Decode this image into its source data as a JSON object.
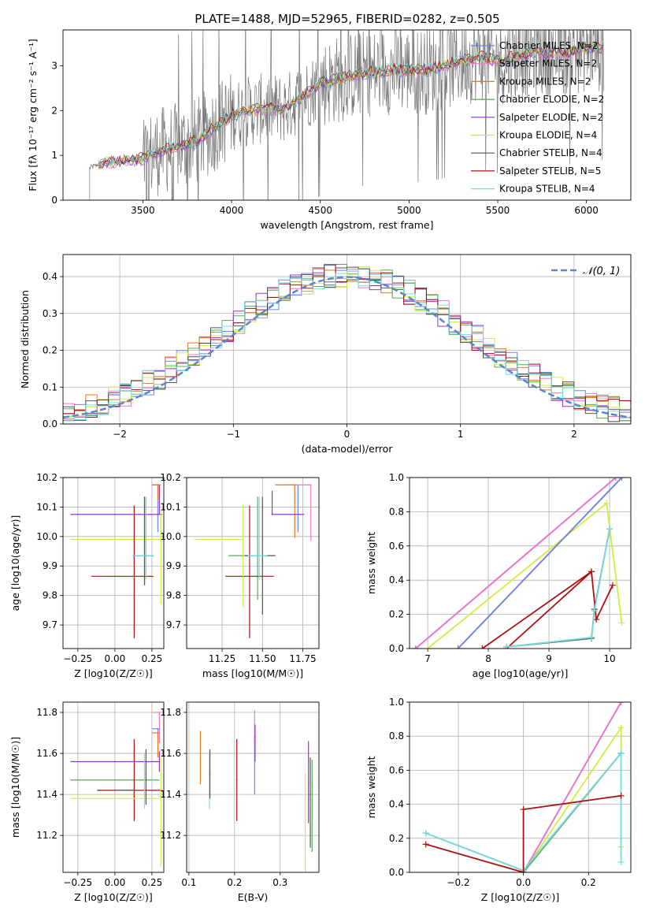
{
  "title": "PLATE=1488, MJD=52965, FIBERID=0282, z=0.505",
  "colors": {
    "chabrier_miles": "#6688ee",
    "salpeter_miles": "#ee77cc",
    "kroupa_miles": "#ee7722",
    "chabrier_elodie": "#55aa55",
    "salpeter_elodie": "#9933cc",
    "kroupa_elodie": "#ccee44",
    "chabrier_stelib": "#555555",
    "salpeter_stelib": "#aa1111",
    "kroupa_stelib": "#77dddd",
    "data": "#777777",
    "normal": "#5588cc"
  },
  "chart_data": [
    {
      "id": "spectrum",
      "type": "line",
      "title": "PLATE=1488, MJD=52965, FIBERID=0282, z=0.505",
      "xlabel": "wavelength [Angstrom, rest frame]",
      "ylabel": "Flux [fλ 10⁻¹⁷ erg cm⁻² s⁻¹ A⁻¹]",
      "xlim": [
        3050,
        6250
      ],
      "ylim": [
        0,
        3.8
      ],
      "xticks": [
        3500,
        4000,
        4500,
        5000,
        5500,
        6000
      ],
      "yticks": [
        0,
        1,
        2,
        3
      ],
      "grid": false,
      "legend_position": "top-right",
      "continuum": [
        [
          3200,
          0.72
        ],
        [
          3250,
          0.8
        ],
        [
          3300,
          0.85
        ],
        [
          3400,
          0.88
        ],
        [
          3500,
          0.92
        ],
        [
          3600,
          1.1
        ],
        [
          3700,
          1.2
        ],
        [
          3800,
          1.3
        ],
        [
          3900,
          1.6
        ],
        [
          4000,
          1.9
        ],
        [
          4100,
          2.0
        ],
        [
          4200,
          2.05
        ],
        [
          4300,
          2.05
        ],
        [
          4400,
          2.3
        ],
        [
          4500,
          2.6
        ],
        [
          4600,
          2.7
        ],
        [
          4700,
          2.8
        ],
        [
          4800,
          2.85
        ],
        [
          4900,
          2.9
        ],
        [
          5000,
          2.9
        ],
        [
          5100,
          2.9
        ],
        [
          5200,
          3.0
        ],
        [
          5300,
          3.1
        ],
        [
          5400,
          3.2
        ],
        [
          5500,
          3.1
        ],
        [
          5600,
          3.2
        ],
        [
          5700,
          3.3
        ],
        [
          5800,
          3.3
        ],
        [
          5900,
          3.3
        ],
        [
          6000,
          3.4
        ],
        [
          6100,
          3.4
        ]
      ],
      "legend": [
        "Chabrier MILES, N_SSP=2",
        "Salpeter MILES, N_SSP=2",
        "Kroupa MILES, N_SSP=2",
        "Chabrier ELODIE, N_SSP=2",
        "Salpeter ELODIE, N_SSP=2",
        "Kroupa ELODIE, N_SSP=4",
        "Chabrier STELIB, N_SSP=4",
        "Salpeter STELIB, N_SSP=5",
        "Kroupa STELIB, N_SSP=4"
      ]
    },
    {
      "id": "residuals",
      "type": "histogram",
      "xlabel": "(data-model)/error",
      "ylabel": "Normed distribution",
      "xlim": [
        -2.5,
        2.5
      ],
      "ylim": [
        0,
        0.46
      ],
      "xticks": [
        -2,
        -1,
        0,
        1,
        2
      ],
      "yticks": [
        0.0,
        0.1,
        0.2,
        0.3,
        0.4
      ],
      "grid": true,
      "legend_position": "top-right",
      "legend": "𝒩(0, 1)",
      "bin_width": 0.1
    },
    {
      "id": "age-vs-Z",
      "type": "errorbar",
      "xlabel": "Z [log10(Z/Z☉)]",
      "ylabel": "age  [log10(age/yr)]",
      "xlim": [
        -0.35,
        0.33
      ],
      "ylim": [
        9.62,
        10.2
      ],
      "xticks": [
        -0.25,
        0.0,
        0.25
      ],
      "yticks": [
        9.7,
        9.8,
        9.9,
        10.0,
        10.1,
        10.2
      ],
      "points": [
        {
          "s": "chabrier_miles",
          "x": 0.29,
          "xerr": [
            0.04,
            0.01
          ],
          "y": 10.175,
          "yerr": [
            0.16,
            0.0
          ]
        },
        {
          "s": "salpeter_miles",
          "x": 0.3,
          "xerr": [
            0.05,
            0.01
          ],
          "y": 10.175,
          "yerr": [
            0.06,
            0.0
          ]
        },
        {
          "s": "kroupa_miles",
          "x": 0.29,
          "xerr": [
            0.04,
            0.01
          ],
          "y": 10.175,
          "yerr": [
            0.05,
            0.0
          ]
        },
        {
          "s": "chabrier_elodie",
          "x": 0.2,
          "xerr": [
            0.08,
            0.06
          ],
          "y": 9.935,
          "yerr": [
            0.1,
            0.2
          ]
        },
        {
          "s": "salpeter_elodie",
          "x": 0.0,
          "xerr": [
            0.3,
            0.32
          ],
          "y": 10.075,
          "yerr": [
            0.0,
            0.0
          ]
        },
        {
          "s": "kroupa_elodie",
          "x": 0.0,
          "xerr": [
            0.3,
            0.32
          ],
          "y": 9.99,
          "yerr": [
            0.0,
            0.0
          ]
        },
        {
          "s": "chabrier_stelib",
          "x": 0.2,
          "xerr": [
            0.08,
            0.06
          ],
          "y": 9.935,
          "yerr": [
            0.1,
            0.2
          ]
        },
        {
          "s": "salpeter_stelib",
          "x": 0.13,
          "xerr": [
            0.29,
            0.13
          ],
          "y": 9.865,
          "yerr": [
            0.21,
            0.24
          ]
        },
        {
          "s": "kroupa_stelib",
          "x": 0.21,
          "xerr": [
            0.09,
            0.05
          ],
          "y": 9.935,
          "yerr": [
            0.08,
            0.2
          ]
        },
        {
          "s": "kroupa_elodie",
          "x": 0.31,
          "xerr": [
            0.0,
            0.0
          ],
          "y": 9.99,
          "yerr": [
            0.22,
            0.1
          ]
        },
        {
          "s": "salpeter_elodie",
          "x": 0.3,
          "xerr": [
            0.0,
            0.0
          ],
          "y": 10.075,
          "yerr": [
            0.0,
            0.1
          ]
        }
      ]
    },
    {
      "id": "age-vs-mass",
      "type": "errorbar",
      "xlabel": "mass [log10(M/M☉)]",
      "ylabel": "",
      "xlim": [
        11.03,
        11.85
      ],
      "ylim": [
        9.62,
        10.2
      ],
      "xticks": [
        11.25,
        11.5,
        11.75
      ],
      "yticks": [
        9.7,
        9.8,
        9.9,
        10.0,
        10.1,
        10.2
      ],
      "points": [
        {
          "s": "chabrier_miles",
          "x": 11.72,
          "xerr": [
            0.05,
            0.0
          ],
          "y": 10.175,
          "yerr": [
            0.16,
            0.0
          ]
        },
        {
          "s": "salpeter_miles",
          "x": 11.8,
          "xerr": [
            0.15,
            0.0
          ],
          "y": 10.175,
          "yerr": [
            0.19,
            0.0
          ]
        },
        {
          "s": "kroupa_miles",
          "x": 11.7,
          "xerr": [
            0.12,
            0.0
          ],
          "y": 10.175,
          "yerr": [
            0.18,
            0.0
          ]
        },
        {
          "s": "chabrier_elodie",
          "x": 11.47,
          "xerr": [
            0.18,
            0.0
          ],
          "y": 9.935,
          "yerr": [
            0.15,
            0.2
          ]
        },
        {
          "s": "salpeter_elodie",
          "x": 11.56,
          "xerr": [
            0.0,
            0.2
          ],
          "y": 10.075,
          "yerr": [
            0.0,
            0.0
          ]
        },
        {
          "s": "kroupa_elodie",
          "x": 11.38,
          "xerr": [
            0.3,
            0.0
          ],
          "y": 9.99,
          "yerr": [
            0.0,
            0.0
          ]
        },
        {
          "s": "chabrier_stelib",
          "x": 11.5,
          "xerr": [
            0.11,
            0.08
          ],
          "y": 9.935,
          "yerr": [
            0.2,
            0.2
          ]
        },
        {
          "s": "salpeter_stelib",
          "x": 11.42,
          "xerr": [
            0.15,
            0.15
          ],
          "y": 9.865,
          "yerr": [
            0.21,
            0.24
          ]
        },
        {
          "s": "kroupa_stelib",
          "x": 11.48,
          "xerr": [
            0.07,
            0.05
          ],
          "y": 9.935,
          "yerr": [
            0.08,
            0.2
          ]
        },
        {
          "s": "kroupa_elodie",
          "x": 11.38,
          "xerr": [
            0.0,
            0.0
          ],
          "y": 9.99,
          "yerr": [
            0.23,
            0.12
          ]
        },
        {
          "s": "salpeter_elodie",
          "x": 11.56,
          "xerr": [
            0.0,
            0.0
          ],
          "y": 10.075,
          "yerr": [
            0.0,
            0.08
          ]
        }
      ]
    },
    {
      "id": "weight-vs-age",
      "type": "line",
      "xlabel": "age  [log10(age/yr)]",
      "ylabel": "mass weight",
      "xlim": [
        6.7,
        10.35
      ],
      "ylim": [
        0,
        1.0
      ],
      "xticks": [
        7,
        8,
        9,
        10
      ],
      "yticks": [
        0.0,
        0.2,
        0.4,
        0.6,
        0.8,
        1.0
      ],
      "series": [
        {
          "s": "salpeter_elodie",
          "x": [
            6.8,
            10.1
          ],
          "y": [
            0.0,
            1.0
          ]
        },
        {
          "s": "salpeter_miles",
          "x": [
            6.8,
            10.1
          ],
          "y": [
            0.0,
            1.0
          ]
        },
        {
          "s": "kroupa_elodie",
          "x": [
            7.0,
            9.95,
            10.2
          ],
          "y": [
            0.0,
            0.85,
            0.15
          ]
        },
        {
          "s": "kroupa_miles",
          "x": [
            7.5,
            10.2
          ],
          "y": [
            0.0,
            1.0
          ]
        },
        {
          "s": "chabrier_miles",
          "x": [
            7.5,
            10.2
          ],
          "y": [
            0.0,
            1.0
          ]
        },
        {
          "s": "salpeter_stelib",
          "x": [
            7.9,
            9.7,
            9.78,
            10.05
          ],
          "y": [
            0.0,
            0.45,
            0.17,
            0.37
          ]
        },
        {
          "s": "salpeter_stelib",
          "x": [
            8.3,
            9.7
          ],
          "y": [
            0.0,
            0.45
          ]
        },
        {
          "s": "chabrier_stelib",
          "x": [
            8.3,
            9.7,
            9.75,
            10.0
          ],
          "y": [
            0.01,
            0.06,
            0.23,
            0.7
          ]
        },
        {
          "s": "kroupa_stelib",
          "x": [
            8.3,
            9.7,
            9.75,
            10.0
          ],
          "y": [
            0.01,
            0.065,
            0.22,
            0.7
          ]
        }
      ]
    },
    {
      "id": "mass-vs-Z",
      "type": "errorbar",
      "xlabel": "Z [log10(Z/Z☉)]",
      "ylabel": "mass [log10(M/M☉)]",
      "xlim": [
        -0.35,
        0.33
      ],
      "ylim": [
        11.02,
        11.85
      ],
      "xticks": [
        -0.25,
        0.0,
        0.25
      ],
      "yticks": [
        11.2,
        11.4,
        11.6,
        11.8
      ],
      "points": [
        {
          "s": "salpeter_miles",
          "x": 0.3,
          "xerr": [
            0.05,
            0.01
          ],
          "y": 11.8,
          "yerr": [
            0.15,
            0.0
          ]
        },
        {
          "s": "chabrier_miles",
          "x": 0.29,
          "xerr": [
            0.04,
            0.01
          ],
          "y": 11.72,
          "yerr": [
            0.05,
            0.0
          ]
        },
        {
          "s": "kroupa_miles",
          "x": 0.29,
          "xerr": [
            0.04,
            0.01
          ],
          "y": 11.7,
          "yerr": [
            0.12,
            0.0
          ]
        },
        {
          "s": "salpeter_elodie",
          "x": 0.0,
          "xerr": [
            0.3,
            0.3
          ],
          "y": 11.56,
          "yerr": [
            0.0,
            0.0
          ]
        },
        {
          "s": "chabrier_elodie",
          "x": 0.0,
          "xerr": [
            0.3,
            0.3
          ],
          "y": 11.47,
          "yerr": [
            0.0,
            0.0
          ]
        },
        {
          "s": "salpeter_stelib",
          "x": 0.13,
          "xerr": [
            0.25,
            0.19
          ],
          "y": 11.42,
          "yerr": [
            0.15,
            0.25
          ]
        },
        {
          "s": "chabrier_stelib",
          "x": 0.0,
          "xerr": [
            0.0,
            0.14
          ],
          "y": 11.42,
          "yerr": [
            0.0,
            0.0
          ]
        },
        {
          "s": "kroupa_elodie",
          "x": 0.0,
          "xerr": [
            0.3,
            0.3
          ],
          "y": 11.38,
          "yerr": [
            0.0,
            0.0
          ]
        },
        {
          "s": "chabrier_stelib",
          "x": 0.21,
          "xerr": [
            0.0,
            0.0
          ],
          "y": 11.5,
          "yerr": [
            0.15,
            0.12
          ]
        },
        {
          "s": "kroupa_stelib",
          "x": 0.2,
          "xerr": [
            0.0,
            0.0
          ],
          "y": 11.48,
          "yerr": [
            0.15,
            0.12
          ]
        },
        {
          "s": "kroupa_elodie",
          "x": 0.31,
          "xerr": [
            0.0,
            0.0
          ],
          "y": 11.38,
          "yerr": [
            0.33,
            0.2
          ]
        },
        {
          "s": "salpeter_elodie",
          "x": 0.3,
          "xerr": [
            0.0,
            0.0
          ],
          "y": 11.56,
          "yerr": [
            0.05,
            0.05
          ]
        }
      ]
    },
    {
      "id": "mass-vs-ebv",
      "type": "errorbar",
      "xlabel": "E(B-V)",
      "ylabel": "",
      "xlim": [
        0.095,
        0.385
      ],
      "ylim": [
        11.02,
        11.85
      ],
      "xticks": [
        0.1,
        0.2,
        0.3
      ],
      "yticks": [
        11.2,
        11.4,
        11.6,
        11.8
      ],
      "points": [
        {
          "s": "kroupa_miles",
          "x": 0.125,
          "y": 11.58,
          "yerr": [
            0.13,
            0.13
          ]
        },
        {
          "s": "kroupa_stelib",
          "x": 0.145,
          "y": 11.48,
          "yerr": [
            0.15,
            0.13
          ]
        },
        {
          "s": "chabrier_stelib",
          "x": 0.146,
          "y": 11.5,
          "yerr": [
            0.12,
            0.12
          ]
        },
        {
          "s": "salpeter_stelib",
          "x": 0.205,
          "y": 11.47,
          "yerr": [
            0.2,
            0.2
          ]
        },
        {
          "s": "chabrier_miles",
          "x": 0.244,
          "y": 11.68,
          "yerr": [
            0.28,
            0.0
          ]
        },
        {
          "s": "salpeter_miles",
          "x": 0.244,
          "y": 11.74,
          "yerr": [
            0.12,
            0.07
          ]
        },
        {
          "s": "salpeter_elodie",
          "x": 0.245,
          "y": 11.68,
          "yerr": [
            0.12,
            0.06
          ]
        },
        {
          "s": "kroupa_elodie",
          "x": 0.355,
          "y": 11.25,
          "yerr": [
            0.25,
            0.25
          ]
        },
        {
          "s": "salpeter_elodie",
          "x": 0.362,
          "y": 11.46,
          "yerr": [
            0.2,
            0.2
          ]
        },
        {
          "s": "chabrier_elodie",
          "x": 0.37,
          "y": 11.35,
          "yerr": [
            0.23,
            0.22
          ]
        },
        {
          "s": "chabrier_stelib",
          "x": 0.366,
          "y": 11.4,
          "yerr": [
            0.26,
            0.18
          ]
        }
      ]
    },
    {
      "id": "weight-vs-Z",
      "type": "line",
      "xlabel": "Z [log10(Z/Z☉)]",
      "ylabel": "mass weight",
      "xlim": [
        -0.35,
        0.33
      ],
      "ylim": [
        0,
        1.0
      ],
      "xticks": [
        -0.2,
        0.0,
        0.2
      ],
      "yticks": [
        0.0,
        0.2,
        0.4,
        0.6,
        0.8,
        1.0
      ],
      "series": [
        {
          "s": "salpeter_elodie",
          "x": [
            0.0,
            0.3
          ],
          "y": [
            0.0,
            1.0
          ]
        },
        {
          "s": "salpeter_miles",
          "x": [
            0.0,
            0.3
          ],
          "y": [
            0.0,
            1.0
          ]
        },
        {
          "s": "kroupa_elodie",
          "x": [
            0.0,
            0.3,
            0.3
          ],
          "y": [
            0.0,
            0.85,
            0.15
          ]
        },
        {
          "s": "chabrier_elodie",
          "x": [
            0.0,
            0.3
          ],
          "y": [
            0.0,
            0.7
          ]
        },
        {
          "s": "chabrier_stelib",
          "x": [
            -0.3,
            0.0,
            0.3
          ],
          "y": [
            0.23,
            0.01,
            0.7
          ]
        },
        {
          "s": "kroupa_stelib",
          "x": [
            -0.3,
            0.0,
            0.3,
            0.3
          ],
          "y": [
            0.23,
            0.01,
            0.7,
            0.06
          ]
        },
        {
          "s": "salpeter_stelib",
          "x": [
            -0.3,
            0.0,
            0.0,
            0.0,
            0.3
          ],
          "y": [
            0.165,
            0.0,
            0.0,
            0.37,
            0.45
          ]
        }
      ]
    }
  ]
}
